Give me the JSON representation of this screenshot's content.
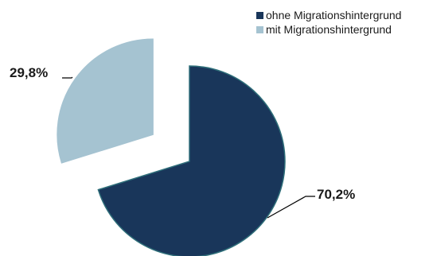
{
  "chart_data": {
    "type": "pie",
    "title": "",
    "categories": [
      "ohne Migrationshintergrund",
      "mit Migrationshintergrund"
    ],
    "values": [
      70.2,
      29.8
    ],
    "value_labels": [
      "70,2%",
      "29,8%"
    ],
    "colors": [
      "#19365a",
      "#a5c3d1"
    ],
    "exploded": "mit Migrationshintergrund",
    "start": "top, clockwise",
    "legend_position": "top-right"
  }
}
